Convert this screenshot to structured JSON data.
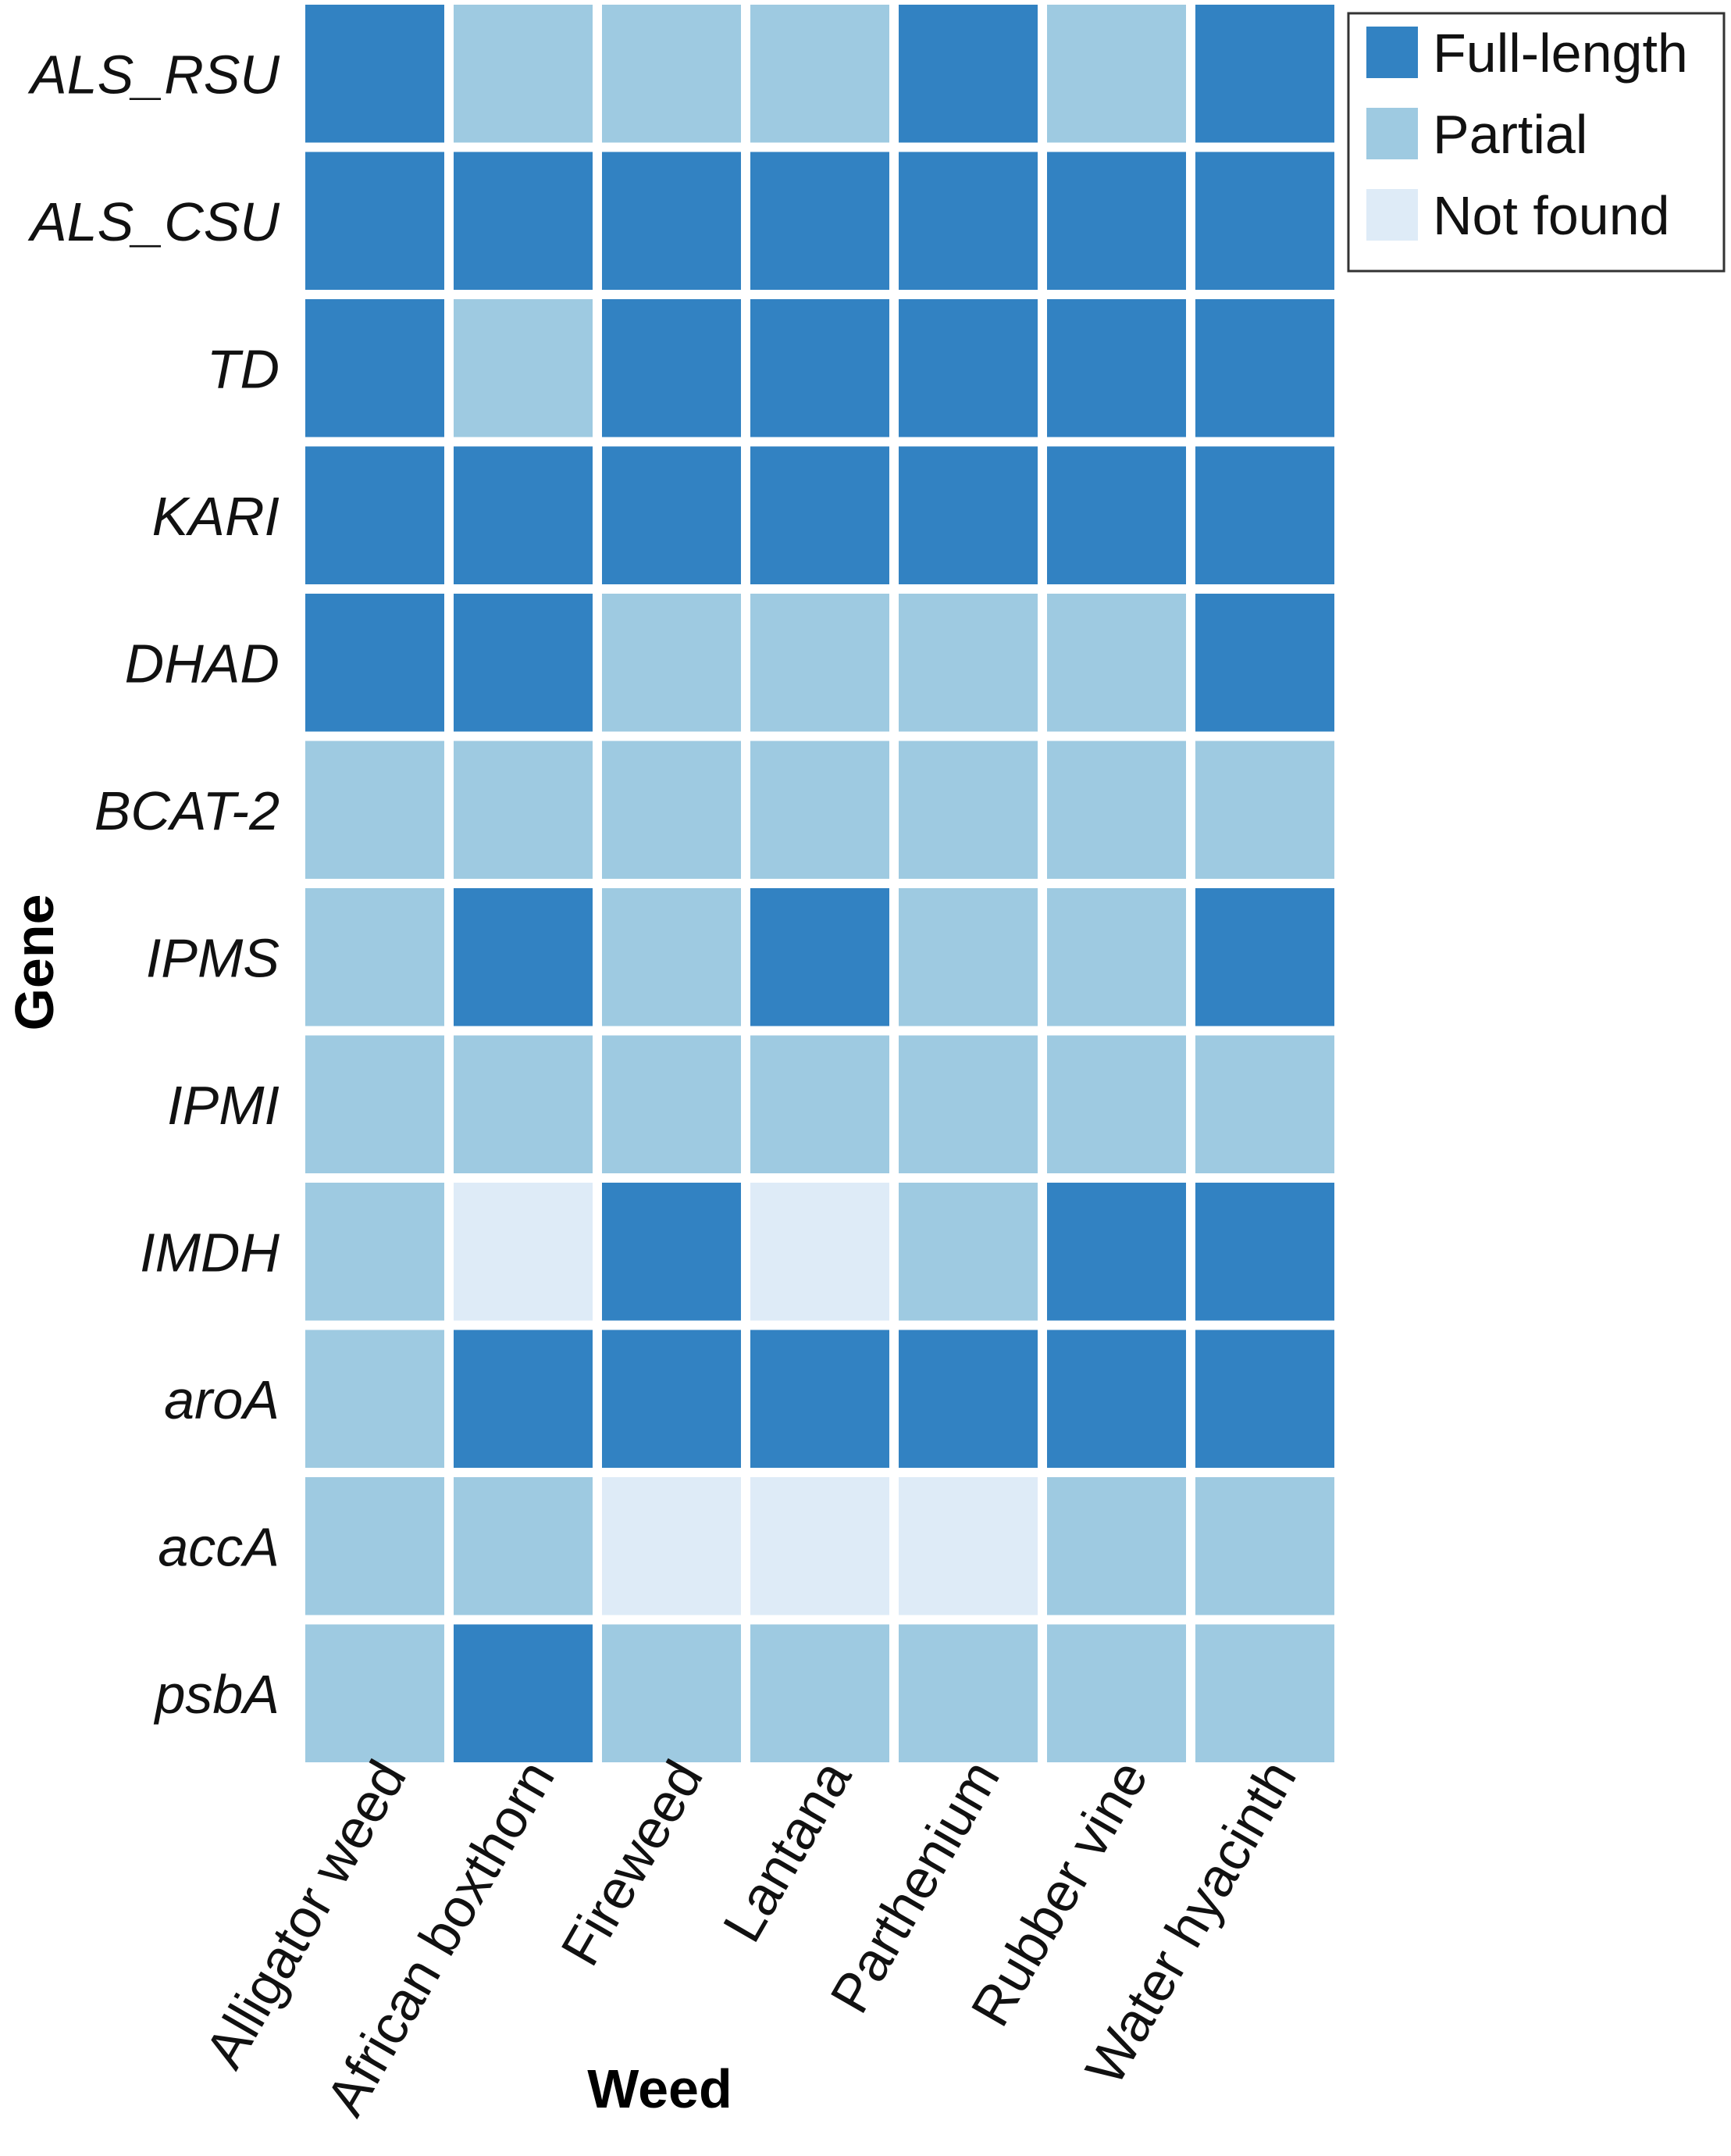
{
  "chart_data": {
    "type": "heatmap",
    "xlabel": "Weed",
    "ylabel": "Gene",
    "columns": [
      "Alligator weed",
      "African boxthorn",
      "Fireweed",
      "Lantana",
      "Parthenium",
      "Rubber vine",
      "Water hyacinth"
    ],
    "rows": [
      "ALS_RSU",
      "ALS_CSU",
      "TD",
      "KARI",
      "DHAD",
      "BCAT-2",
      "IPMS",
      "IPMI",
      "IMDH",
      "aroA",
      "accA",
      "psbA"
    ],
    "values": [
      [
        "Full-length",
        "Partial",
        "Partial",
        "Partial",
        "Full-length",
        "Partial",
        "Full-length"
      ],
      [
        "Full-length",
        "Full-length",
        "Full-length",
        "Full-length",
        "Full-length",
        "Full-length",
        "Full-length"
      ],
      [
        "Full-length",
        "Partial",
        "Full-length",
        "Full-length",
        "Full-length",
        "Full-length",
        "Full-length"
      ],
      [
        "Full-length",
        "Full-length",
        "Full-length",
        "Full-length",
        "Full-length",
        "Full-length",
        "Full-length"
      ],
      [
        "Full-length",
        "Full-length",
        "Partial",
        "Partial",
        "Partial",
        "Partial",
        "Full-length"
      ],
      [
        "Partial",
        "Partial",
        "Partial",
        "Partial",
        "Partial",
        "Partial",
        "Partial"
      ],
      [
        "Partial",
        "Full-length",
        "Partial",
        "Full-length",
        "Partial",
        "Partial",
        "Full-length"
      ],
      [
        "Partial",
        "Partial",
        "Partial",
        "Partial",
        "Partial",
        "Partial",
        "Partial"
      ],
      [
        "Partial",
        "Not found",
        "Full-length",
        "Not found",
        "Partial",
        "Full-length",
        "Full-length"
      ],
      [
        "Partial",
        "Full-length",
        "Full-length",
        "Full-length",
        "Full-length",
        "Full-length",
        "Full-length"
      ],
      [
        "Partial",
        "Partial",
        "Not found",
        "Not found",
        "Not found",
        "Partial",
        "Partial"
      ],
      [
        "Partial",
        "Full-length",
        "Partial",
        "Partial",
        "Partial",
        "Partial",
        "Partial"
      ]
    ],
    "legend": {
      "position": "top-right",
      "entries": [
        {
          "label": "Full-length",
          "color": "#3282c2"
        },
        {
          "label": "Partial",
          "color": "#9ecae1"
        },
        {
          "label": "Not found",
          "color": "#deebf7"
        }
      ]
    }
  }
}
